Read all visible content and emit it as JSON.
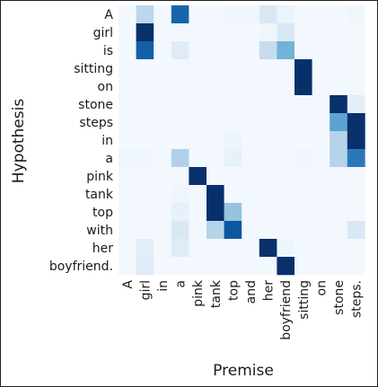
{
  "chart_data": {
    "type": "heatmap",
    "title": "",
    "xlabel": "Premise",
    "ylabel": "Hypothesis",
    "x_categories": [
      "A",
      "girl",
      "in",
      "a",
      "pink",
      "tank",
      "top",
      "and",
      "her",
      "boyfriend",
      "sitting",
      "on",
      "stone",
      "steps."
    ],
    "y_categories": [
      "A",
      "girl",
      "is",
      "sitting",
      "on",
      "stone",
      "steps",
      "in",
      "a",
      "pink",
      "tank",
      "top",
      "with",
      "her",
      "boyfriend."
    ],
    "value_range": [
      0,
      1
    ],
    "colormap": "Blues",
    "values": [
      [
        0.02,
        0.28,
        0.02,
        0.8,
        0.02,
        0.02,
        0.04,
        0.04,
        0.15,
        0.06,
        0.02,
        0.02,
        0.02,
        0.04
      ],
      [
        0.02,
        1.0,
        0.02,
        0.02,
        0.02,
        0.02,
        0.02,
        0.02,
        0.04,
        0.15,
        0.02,
        0.02,
        0.02,
        0.02
      ],
      [
        0.02,
        0.82,
        0.02,
        0.12,
        0.02,
        0.02,
        0.02,
        0.02,
        0.25,
        0.48,
        0.02,
        0.02,
        0.02,
        0.02
      ],
      [
        0.02,
        0.02,
        0.02,
        0.02,
        0.02,
        0.02,
        0.02,
        0.02,
        0.02,
        0.02,
        1.0,
        0.02,
        0.02,
        0.02
      ],
      [
        0.02,
        0.02,
        0.02,
        0.02,
        0.02,
        0.02,
        0.02,
        0.02,
        0.02,
        0.02,
        1.0,
        0.02,
        0.02,
        0.03
      ],
      [
        0.02,
        0.02,
        0.02,
        0.02,
        0.02,
        0.02,
        0.02,
        0.02,
        0.02,
        0.02,
        0.02,
        0.02,
        1.0,
        0.1
      ],
      [
        0.02,
        0.02,
        0.02,
        0.02,
        0.02,
        0.02,
        0.02,
        0.02,
        0.02,
        0.02,
        0.02,
        0.02,
        0.55,
        1.0
      ],
      [
        0.02,
        0.02,
        0.02,
        0.02,
        0.02,
        0.02,
        0.05,
        0.02,
        0.02,
        0.02,
        0.02,
        0.02,
        0.3,
        1.0
      ],
      [
        0.04,
        0.04,
        0.02,
        0.32,
        0.02,
        0.02,
        0.08,
        0.02,
        0.03,
        0.02,
        0.04,
        0.02,
        0.3,
        0.72
      ],
      [
        0.02,
        0.02,
        0.02,
        0.02,
        1.0,
        0.02,
        0.02,
        0.02,
        0.02,
        0.02,
        0.02,
        0.02,
        0.02,
        0.02
      ],
      [
        0.02,
        0.02,
        0.02,
        0.04,
        0.02,
        1.0,
        0.02,
        0.02,
        0.02,
        0.02,
        0.02,
        0.02,
        0.02,
        0.02
      ],
      [
        0.02,
        0.02,
        0.02,
        0.08,
        0.02,
        1.0,
        0.4,
        0.02,
        0.02,
        0.02,
        0.02,
        0.02,
        0.02,
        0.02
      ],
      [
        0.02,
        0.02,
        0.02,
        0.15,
        0.02,
        0.3,
        0.85,
        0.02,
        0.02,
        0.02,
        0.02,
        0.02,
        0.02,
        0.15
      ],
      [
        0.02,
        0.1,
        0.02,
        0.12,
        0.02,
        0.02,
        0.02,
        0.02,
        1.0,
        0.05,
        0.02,
        0.02,
        0.02,
        0.02
      ],
      [
        0.02,
        0.12,
        0.02,
        0.02,
        0.02,
        0.02,
        0.02,
        0.02,
        0.02,
        1.0,
        0.02,
        0.02,
        0.02,
        0.02
      ]
    ]
  }
}
